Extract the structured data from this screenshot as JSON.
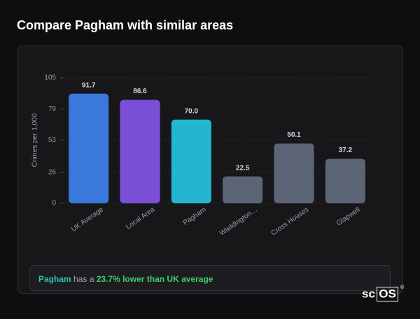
{
  "header": {
    "title": "Compare Pagham with similar areas"
  },
  "chart_data": {
    "type": "bar",
    "y_label": "Crimes per 1,000",
    "categories": [
      "UK Average",
      "Local Area",
      "Pagham",
      "Waddington…",
      "Cross Houses",
      "Glapwell"
    ],
    "values": [
      91.7,
      86.6,
      70.0,
      22.5,
      50.1,
      37.2
    ],
    "value_labels": [
      "91.7",
      "86.6",
      "70.0",
      "22.5",
      "50.1",
      "37.2"
    ],
    "colors": [
      "#3a78de",
      "#7b4ed8",
      "#22b7cf",
      "#5c6576",
      "#5c6576",
      "#5c6576"
    ],
    "ylim": [
      0,
      105
    ],
    "yticks": [
      0,
      26,
      53,
      79,
      105
    ],
    "grid": true
  },
  "summary": {
    "place": "Pagham",
    "text": "has a",
    "highlight": "23.7% lower than UK average"
  },
  "brand": {
    "prefix": "sc",
    "boxed": "OS",
    "mark": "®"
  }
}
